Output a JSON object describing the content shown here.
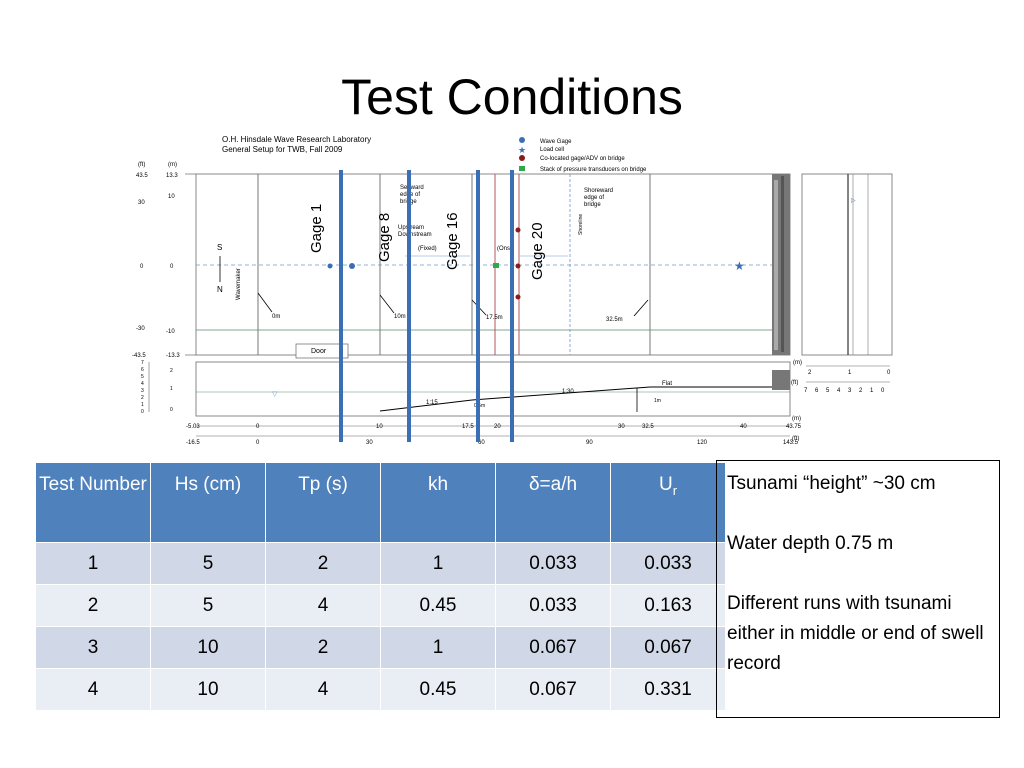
{
  "title": "Test Conditions",
  "diagram": {
    "lab_title_1": "O.H. Hinsdale Wave Research Laboratory",
    "lab_title_2": "General Setup for TWB, Fall 2009",
    "legend": [
      "Wave Gage",
      "Load cell",
      "Co-located gage/ADV on bridge",
      "Stack of pressure transducers on bridge"
    ],
    "unit_ft": "(ft)",
    "unit_m": "(m)",
    "left_ft_ticks": [
      "43.5",
      "30",
      "0",
      "-30",
      "-43.5"
    ],
    "left_m_ticks": [
      "13.3",
      "10",
      "0",
      "-10",
      "-13.3"
    ],
    "s_label": "S",
    "n_label": "N",
    "wavemaker": "Wavemaker",
    "door": "Door",
    "seaward": "Seaward edge of bridge",
    "shoreward": "Shoreward edge of bridge",
    "shoreline": "Shoreline",
    "upstream": "Upstream",
    "downstream": "Downstream",
    "fixed": "(Fixed)",
    "onshore": "(Onsh",
    "pos_0m": "0m",
    "pos_10m": "10m",
    "pos_17_5m": "17.5m",
    "pos_32_5m": "32.5m",
    "slope_15": "1:15",
    "slope_30": "1:30",
    "flat": "Flat",
    "depth_1m": "1m",
    "depth_0_5m": "0.5m",
    "profile_ticks_left": [
      "7",
      "6",
      "5",
      "4",
      "3",
      "2",
      "1",
      "0"
    ],
    "profile_ticks_m": [
      "2",
      "1",
      "0"
    ],
    "x_m_ticks": [
      "-5.03",
      "0",
      "10",
      "17.5",
      "20",
      "30",
      "32.5",
      "40",
      "43.75"
    ],
    "x_ft_ticks": [
      "-16.5",
      "0",
      "30",
      "60",
      "90",
      "120",
      "143.5"
    ],
    "right_m": "(m)",
    "right_m_ticks": [
      "2",
      "1",
      "0"
    ],
    "right_ft": "(ft)",
    "right_ft_ticks": [
      "7",
      "6",
      "5",
      "4",
      "3",
      "2",
      "1",
      "0"
    ],
    "gages": [
      "Gage 1",
      "Gage 8",
      "Gage 16",
      "Gage 20"
    ]
  },
  "table": {
    "headers": [
      "Test Number",
      "Hs (cm)",
      "Tp (s)",
      "kh",
      "δ=a/h",
      "Ur"
    ],
    "header_ur_main": "U",
    "header_ur_sub": "r",
    "rows": [
      [
        "1",
        "5",
        "2",
        "1",
        "0.033",
        "0.033"
      ],
      [
        "2",
        "5",
        "4",
        "0.45",
        "0.033",
        "0.163"
      ],
      [
        "3",
        "10",
        "2",
        "1",
        "0.067",
        "0.067"
      ],
      [
        "4",
        "10",
        "4",
        "0.45",
        "0.067",
        "0.331"
      ]
    ]
  },
  "notes": [
    "Tsunami “height” ~30 cm",
    "Water depth 0.75 m",
    "Different runs with tsunami either in middle or end of swell record"
  ],
  "colors": {
    "header_bg": "#4f81bd",
    "row_odd": "#d0d8e8",
    "row_even": "#e9edf4",
    "gage_line": "#3a6fb5"
  }
}
